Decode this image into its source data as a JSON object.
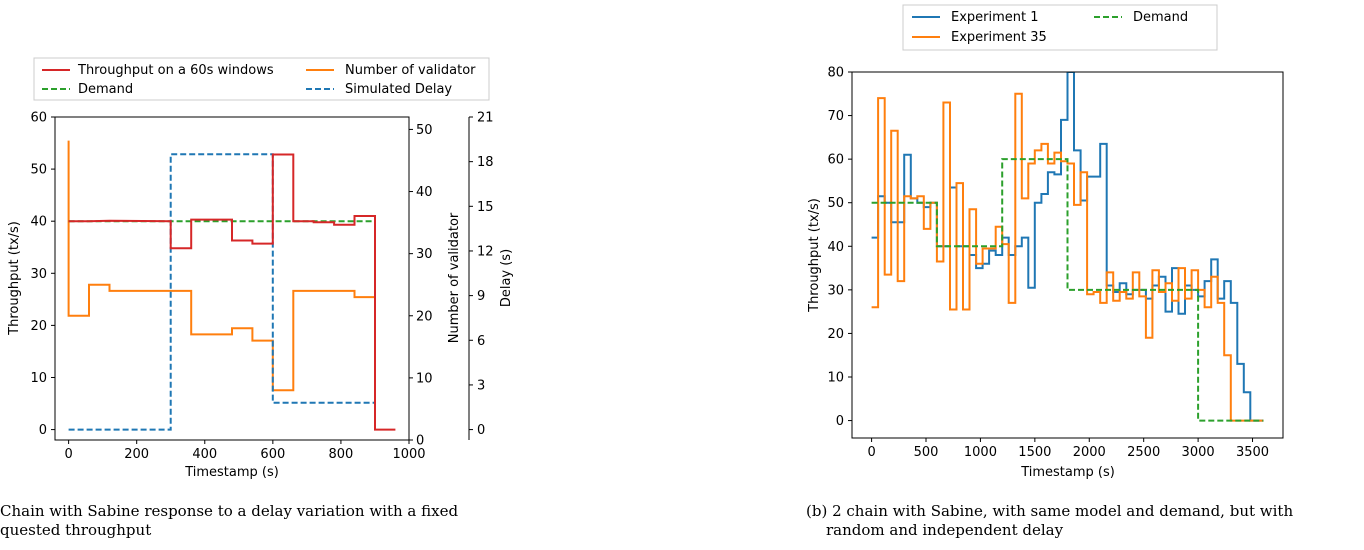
{
  "colors": {
    "throughput": "#d62728",
    "validators": "#ff7f0e",
    "demand": "#2ca02c",
    "delay": "#1f77b4",
    "exp1": "#1f77b4",
    "exp35": "#ff7f0e"
  },
  "captions": {
    "a_line1": "Chain with Sabine response to a delay variation with a fixed",
    "a_line2": "quested throughput",
    "b_line1": "(b) 2 chain with Sabine, with same model and demand, but with",
    "b_line2": "random and independent delay"
  },
  "chart_data": [
    {
      "type": "line",
      "xlabel": "Timestamp (s)",
      "ylabel": "Throughput (tx/s)",
      "y2label": "Number of validator",
      "y3label": "Delay (s)",
      "xlim": [
        -40,
        1000
      ],
      "ylim": [
        -2,
        60
      ],
      "y2lim": [
        0,
        52
      ],
      "y3lim": [
        -0.7,
        21
      ],
      "xticks": [
        "0",
        "200",
        "400",
        "600",
        "800",
        "1000"
      ],
      "yticks": [
        "0",
        "10",
        "20",
        "30",
        "40",
        "50",
        "60"
      ],
      "y2ticks": [
        "0",
        "10",
        "20",
        "30",
        "40",
        "50"
      ],
      "y3ticks": [
        "0",
        "3",
        "6",
        "9",
        "12",
        "15",
        "18",
        "21"
      ],
      "legend": "top",
      "series": [
        {
          "name": "Throughput on a 60s windows",
          "axis": "y",
          "style": "solid",
          "x": [
            0,
            60,
            60,
            120,
            120,
            300,
            300,
            360,
            360,
            480,
            480,
            540,
            540,
            600,
            600,
            660,
            660,
            720,
            720,
            780,
            780,
            840,
            840,
            900,
            900,
            960
          ],
          "y": [
            40,
            40,
            40,
            40.1,
            40.1,
            40,
            34.8,
            34.8,
            40.3,
            40.3,
            36.3,
            36.3,
            35.7,
            35.7,
            52.8,
            52.8,
            40,
            40,
            39.8,
            39.8,
            39.3,
            39.3,
            41,
            41,
            0,
            0
          ]
        },
        {
          "name": "Demand",
          "axis": "y",
          "style": "dashed",
          "x": [
            0,
            900
          ],
          "y": [
            40,
            40
          ]
        },
        {
          "name": "Number of validator",
          "axis": "y2",
          "style": "solid",
          "x": [
            0,
            0,
            60,
            60,
            120,
            120,
            360,
            360,
            480,
            480,
            540,
            540,
            600,
            600,
            660,
            660,
            840,
            840,
            900
          ],
          "y": [
            48.2,
            20,
            20,
            25,
            25,
            24,
            24,
            17,
            17,
            18,
            18,
            16,
            16,
            8,
            8,
            24,
            24,
            23,
            23
          ]
        },
        {
          "name": "Simulated Delay",
          "axis": "y3",
          "style": "dashed",
          "x": [
            0,
            300,
            300,
            600,
            600,
            900
          ],
          "y": [
            0,
            0,
            18.5,
            18.5,
            1.8,
            1.8
          ]
        }
      ]
    },
    {
      "type": "line",
      "xlabel": "Timestamp (s)",
      "ylabel": "Throughput (tx/s)",
      "xlim": [
        -180,
        3780
      ],
      "ylim": [
        -4,
        80
      ],
      "xticks": [
        "0",
        "500",
        "1000",
        "1500",
        "2000",
        "2500",
        "3000",
        "3500"
      ],
      "yticks": [
        "0",
        "10",
        "20",
        "30",
        "40",
        "50",
        "60",
        "70",
        "80"
      ],
      "legend": "top",
      "series": [
        {
          "name": "Experiment 1",
          "style": "solid",
          "y": [
            42,
            51.5,
            50,
            45.5,
            45.5,
            61,
            51,
            50,
            49,
            50,
            40,
            40,
            53.5,
            40,
            40,
            38,
            35,
            36,
            39,
            38,
            42,
            38,
            40,
            42,
            30.5,
            50,
            52,
            57,
            56.5,
            69,
            80,
            62,
            50.5,
            56,
            56,
            63.5,
            31,
            29.5,
            31.5,
            29,
            30,
            30,
            28,
            31,
            33,
            25,
            35,
            24.5,
            31,
            30,
            28.5,
            32,
            37,
            28,
            32,
            27,
            13,
            6.5,
            0,
            0,
            0
          ]
        },
        {
          "name": "Experiment 35",
          "style": "solid",
          "y": [
            26,
            74,
            33.5,
            66.5,
            32,
            51.5,
            51,
            51.5,
            44,
            50,
            36.5,
            73,
            25.5,
            54.5,
            25.5,
            48.5,
            36,
            39.5,
            39.5,
            44.5,
            40.5,
            27,
            75,
            51,
            59,
            62,
            63.5,
            59,
            61.5,
            59.5,
            59,
            49.5,
            57,
            29,
            29.5,
            27,
            34,
            27.5,
            29.5,
            28,
            34,
            28.5,
            19,
            34.5,
            29.5,
            31.5,
            27.5,
            35,
            28,
            34.5,
            30,
            26,
            33,
            27,
            15,
            0,
            0,
            0,
            0,
            0,
            0
          ]
        },
        {
          "name": "Demand",
          "style": "dashed",
          "x": [
            0,
            600,
            600,
            1200,
            1200,
            1800,
            1800,
            3000,
            3000,
            3600
          ],
          "y": [
            50,
            50,
            40,
            40,
            60,
            60,
            30,
            30,
            0,
            0
          ]
        }
      ]
    }
  ]
}
